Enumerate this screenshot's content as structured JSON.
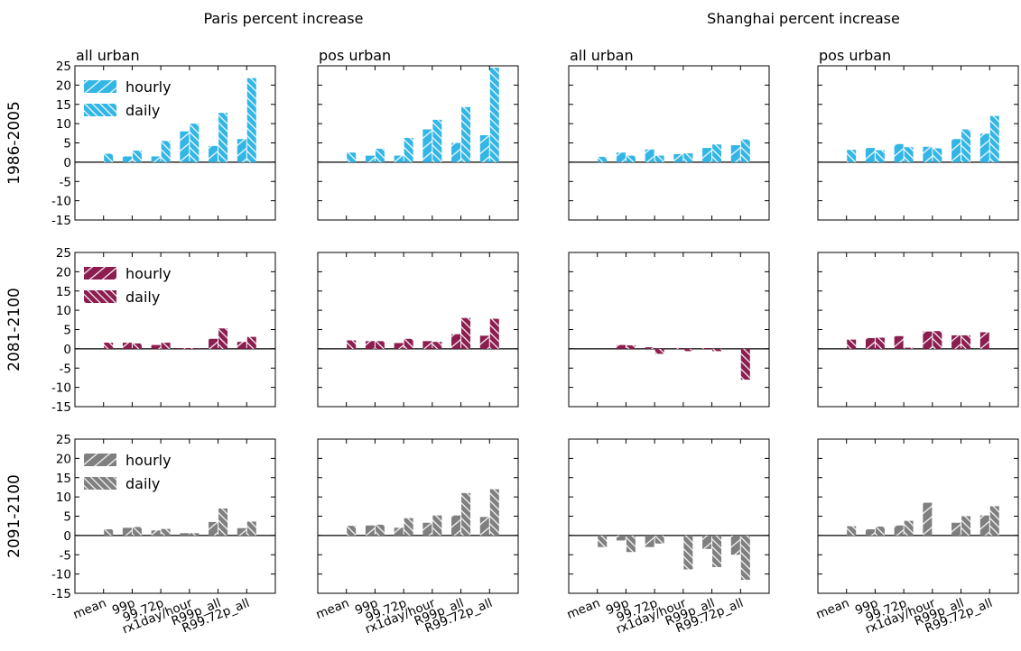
{
  "figure": {
    "group_titles": [
      "Paris percent increase",
      "Shanghai percent increase"
    ],
    "panel_titles": [
      "all urban",
      "pos urban",
      "all urban",
      "pos urban"
    ],
    "row_labels": [
      "1986-2005",
      "2081-2100",
      "2091-2100"
    ],
    "legend": {
      "hourly": "hourly",
      "daily": "daily"
    }
  },
  "colors": {
    "row1": "#33b6e6",
    "row2": "#8b1e4f",
    "row3": "#7f7f7f"
  },
  "chart_data": {
    "type": "bar",
    "categories": [
      "mean",
      "99p",
      "99.72p",
      "rx1day/hour",
      "R99p_all",
      "R99.72p_all"
    ],
    "ylim": [
      -15,
      25
    ],
    "yticks": [
      -15,
      -10,
      -5,
      0,
      5,
      10,
      15,
      20,
      25
    ],
    "series_names": [
      "hourly",
      "daily"
    ],
    "rows": [
      {
        "label": "1986-2005",
        "panels": [
          {
            "title": "all urban",
            "hourly": [
              0,
              1.5,
              1.5,
              8,
              4.2,
              6
            ],
            "daily": [
              2.2,
              3,
              5.5,
              10,
              12.8,
              21.8
            ]
          },
          {
            "title": "pos urban",
            "hourly": [
              0,
              1.7,
              1.7,
              8.5,
              5,
              7
            ],
            "daily": [
              2.5,
              3.5,
              6.3,
              11,
              14.3,
              24.5
            ]
          },
          {
            "title": "all urban",
            "hourly": [
              0,
              2.5,
              3.3,
              2.1,
              3.7,
              4.4
            ],
            "daily": [
              1.4,
              1.7,
              1.7,
              2.3,
              4.6,
              5.9
            ]
          },
          {
            "title": "pos urban",
            "hourly": [
              0,
              3.7,
              4.7,
              4,
              6,
              7.4
            ],
            "daily": [
              3.2,
              3.1,
              3.9,
              3.6,
              8.5,
              12
            ]
          }
        ]
      },
      {
        "label": "2081-2100",
        "panels": [
          {
            "title": "all urban",
            "hourly": [
              0,
              1.6,
              1,
              0.2,
              2.6,
              1.8
            ],
            "daily": [
              1.6,
              1.4,
              1.6,
              0.2,
              5.3,
              3.1
            ]
          },
          {
            "title": "pos urban",
            "hourly": [
              0,
              2,
              1.5,
              2,
              3.8,
              3.4
            ],
            "daily": [
              2.2,
              2,
              2.6,
              1.8,
              8,
              7.8
            ]
          },
          {
            "title": "all urban",
            "hourly": [
              0,
              1,
              0.4,
              0.2,
              0.2,
              0
            ],
            "daily": [
              0,
              0.9,
              -1.3,
              -0.6,
              -0.6,
              -8
            ]
          },
          {
            "title": "pos urban",
            "hourly": [
              0,
              2.8,
              3.3,
              4.5,
              3.5,
              4.3
            ],
            "daily": [
              2.4,
              2.9,
              0.3,
              4.6,
              3.5,
              0
            ]
          }
        ]
      },
      {
        "label": "2091-2100",
        "panels": [
          {
            "title": "all urban",
            "hourly": [
              0,
              2,
              1.3,
              0.6,
              3.5,
              1.9
            ],
            "daily": [
              1.6,
              2.2,
              1.7,
              0.6,
              7,
              3.6
            ]
          },
          {
            "title": "pos urban",
            "hourly": [
              0,
              2.6,
              2,
              3.3,
              5.2,
              4.8
            ],
            "daily": [
              2.5,
              2.8,
              4.5,
              5.2,
              11,
              12
            ]
          },
          {
            "title": "all urban",
            "hourly": [
              0,
              -1.3,
              -3,
              0,
              -3.5,
              -5
            ],
            "daily": [
              -3,
              -4.3,
              -2.1,
              -8.8,
              -8.2,
              -11.5
            ]
          },
          {
            "title": "pos urban",
            "hourly": [
              0,
              1.6,
              2.6,
              8.5,
              3.3,
              5.2
            ],
            "daily": [
              2.4,
              2.3,
              3.8,
              0,
              5,
              7.6
            ]
          }
        ]
      }
    ]
  }
}
